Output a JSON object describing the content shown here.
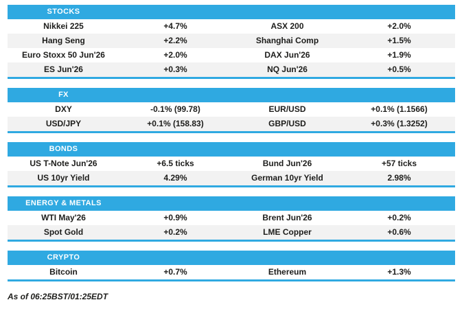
{
  "colors": {
    "accent": "#2FA9E1",
    "row_alt": "#F2F2F2",
    "text": "#1D1D1B"
  },
  "sections": [
    {
      "id": "stocks",
      "label": "STOCKS",
      "rows": [
        [
          "Nikkei 225",
          "+4.7%",
          "ASX 200",
          "+2.0%"
        ],
        [
          "Hang Seng",
          "+2.2%",
          "Shanghai Comp",
          "+1.5%"
        ],
        [
          "Euro Stoxx 50 Jun'26",
          "+2.0%",
          "DAX Jun'26",
          "+1.9%"
        ],
        [
          "ES Jun'26",
          "+0.3%",
          "NQ Jun'26",
          "+0.5%"
        ]
      ]
    },
    {
      "id": "fx",
      "label": "FX",
      "rows": [
        [
          "DXY",
          "-0.1% (99.78)",
          "EUR/USD",
          "+0.1% (1.1566)"
        ],
        [
          "USD/JPY",
          "+0.1% (158.83)",
          "GBP/USD",
          "+0.3% (1.3252)"
        ]
      ]
    },
    {
      "id": "bonds",
      "label": "BONDS",
      "rows": [
        [
          "US T-Note Jun'26",
          "+6.5 ticks",
          "Bund Jun'26",
          "+57 ticks"
        ],
        [
          "US 10yr Yield",
          "4.29%",
          "German 10yr Yield",
          "2.98%"
        ]
      ]
    },
    {
      "id": "energy-metals",
      "label": "ENERGY & METALS",
      "rows": [
        [
          "WTI May'26",
          "+0.9%",
          "Brent Jun'26",
          "+0.2%"
        ],
        [
          "Spot Gold",
          "+0.2%",
          "LME Copper",
          "+0.6%"
        ]
      ]
    },
    {
      "id": "crypto",
      "label": "CRYPTO",
      "rows": [
        [
          "Bitcoin",
          "+0.7%",
          "Ethereum",
          "+1.3%"
        ]
      ]
    }
  ],
  "footer": {
    "as_of": "As of 06:25BST/01:25EDT"
  }
}
